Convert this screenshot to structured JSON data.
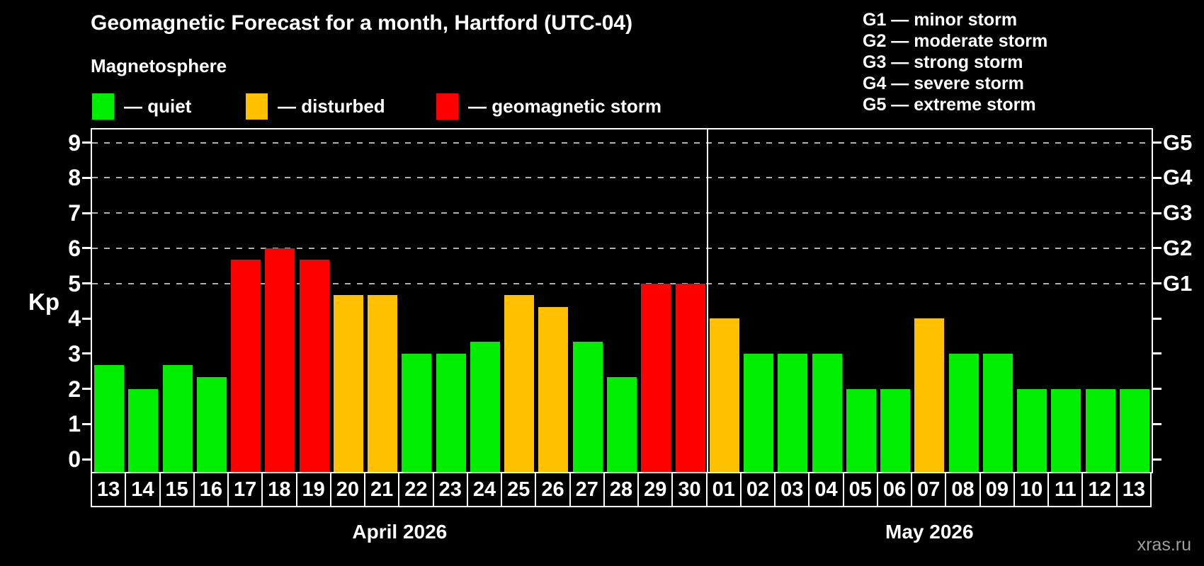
{
  "header": {
    "title": "Geomagnetic Forecast for a month, Hartford (UTC-04)",
    "subtitle": "Magnetosphere"
  },
  "legend": {
    "items": [
      {
        "key": "quiet",
        "label": "— quiet",
        "color": "#00ef00"
      },
      {
        "key": "disturbed",
        "label": "— disturbed",
        "color": "#ffc000"
      },
      {
        "key": "storm",
        "label": "— geomagnetic storm",
        "color": "#ff0000"
      }
    ]
  },
  "g_scale": {
    "levels": [
      "G1 — minor storm",
      "G2 — moderate storm",
      "G3 — strong storm",
      "G4 — severe storm",
      "G5 — extreme storm"
    ]
  },
  "watermark": "xras.ru",
  "chart_data": {
    "type": "bar",
    "title": "Geomagnetic Forecast for a month, Hartford (UTC-04)",
    "ylabel": "Kp",
    "ylim": [
      0,
      9.45
    ],
    "yticks": [
      0,
      1,
      2,
      3,
      4,
      5,
      6,
      7,
      8,
      9
    ],
    "grid": "dashed horizontal lines at storm levels only",
    "grid_levels": [
      5,
      6,
      7,
      8,
      9
    ],
    "right_axis": [
      {
        "kp": 5,
        "label": "G1"
      },
      {
        "kp": 6,
        "label": "G2"
      },
      {
        "kp": 7,
        "label": "G3"
      },
      {
        "kp": 8,
        "label": "G4"
      },
      {
        "kp": 9,
        "label": "G5"
      }
    ],
    "legend_position": "top-left",
    "months": [
      {
        "label": "April 2026",
        "days": [
          {
            "date": "13",
            "kp": 2.67,
            "status": "quiet"
          },
          {
            "date": "14",
            "kp": 2.0,
            "status": "quiet"
          },
          {
            "date": "15",
            "kp": 2.67,
            "status": "quiet"
          },
          {
            "date": "16",
            "kp": 2.33,
            "status": "quiet"
          },
          {
            "date": "17",
            "kp": 5.67,
            "status": "storm"
          },
          {
            "date": "18",
            "kp": 6.0,
            "status": "storm"
          },
          {
            "date": "19",
            "kp": 5.67,
            "status": "storm"
          },
          {
            "date": "20",
            "kp": 4.67,
            "status": "disturbed"
          },
          {
            "date": "21",
            "kp": 4.67,
            "status": "disturbed"
          },
          {
            "date": "22",
            "kp": 3.0,
            "status": "quiet"
          },
          {
            "date": "23",
            "kp": 3.0,
            "status": "quiet"
          },
          {
            "date": "24",
            "kp": 3.33,
            "status": "quiet"
          },
          {
            "date": "25",
            "kp": 4.67,
            "status": "disturbed"
          },
          {
            "date": "26",
            "kp": 4.33,
            "status": "disturbed"
          },
          {
            "date": "27",
            "kp": 3.33,
            "status": "quiet"
          },
          {
            "date": "28",
            "kp": 2.33,
            "status": "quiet"
          },
          {
            "date": "29",
            "kp": 5.0,
            "status": "storm"
          },
          {
            "date": "30",
            "kp": 5.0,
            "status": "storm"
          }
        ]
      },
      {
        "label": "May 2026",
        "days": [
          {
            "date": "01",
            "kp": 4.0,
            "status": "disturbed"
          },
          {
            "date": "02",
            "kp": 3.0,
            "status": "quiet"
          },
          {
            "date": "03",
            "kp": 3.0,
            "status": "quiet"
          },
          {
            "date": "04",
            "kp": 3.0,
            "status": "quiet"
          },
          {
            "date": "05",
            "kp": 2.0,
            "status": "quiet"
          },
          {
            "date": "06",
            "kp": 2.0,
            "status": "quiet"
          },
          {
            "date": "07",
            "kp": 4.0,
            "status": "disturbed"
          },
          {
            "date": "08",
            "kp": 3.0,
            "status": "quiet"
          },
          {
            "date": "09",
            "kp": 3.0,
            "status": "quiet"
          },
          {
            "date": "10",
            "kp": 2.0,
            "status": "quiet"
          },
          {
            "date": "11",
            "kp": 2.0,
            "status": "quiet"
          },
          {
            "date": "12",
            "kp": 2.0,
            "status": "quiet"
          },
          {
            "date": "13",
            "kp": 2.0,
            "status": "quiet"
          }
        ]
      }
    ]
  }
}
